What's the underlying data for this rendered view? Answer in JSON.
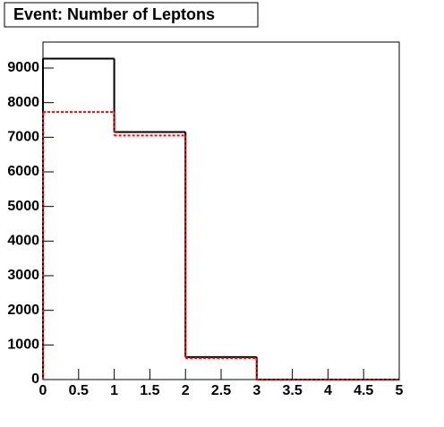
{
  "chart_data": {
    "type": "histogram",
    "title": "Event: Number of Leptons",
    "bins": [
      0,
      1,
      2,
      3,
      4,
      5
    ],
    "series": [
      {
        "color": "#000000",
        "dashed": false,
        "values": [
          9270,
          7150,
          650,
          0,
          0
        ]
      },
      {
        "color": "#ff0000",
        "dashed": true,
        "values": [
          7730,
          7050,
          620,
          0,
          0
        ]
      }
    ],
    "xlim": [
      0,
      5
    ],
    "xticks": [
      0,
      0.5,
      1,
      1.5,
      2,
      2.5,
      3,
      3.5,
      4,
      4.5,
      5
    ],
    "ylim": [
      0,
      9750
    ],
    "yticks": [
      0,
      1000,
      2000,
      3000,
      4000,
      5000,
      6000,
      7000,
      8000,
      9000
    ]
  }
}
